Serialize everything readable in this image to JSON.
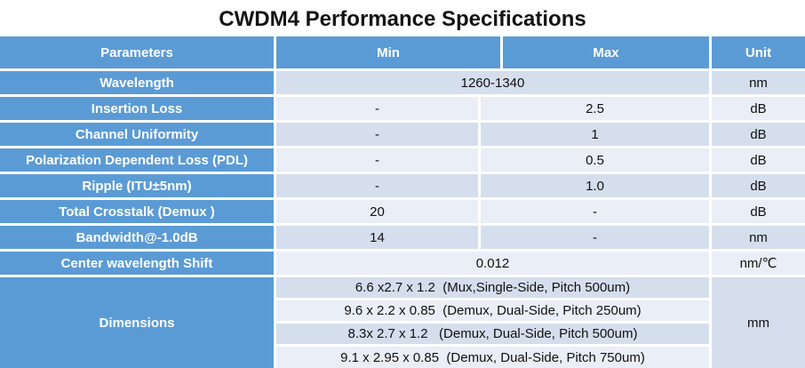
{
  "title": "CWDM4 Performance Specifications",
  "colors": {
    "header_blue": "#5B9BD5",
    "band_dark": "#D5DEED",
    "band_light": "#EAEEF7",
    "header_text": "#FFFFFF",
    "body_text": "#101010"
  },
  "table": {
    "headers": [
      "Parameters",
      "Min",
      "Max",
      "Unit"
    ],
    "rows": [
      {
        "param": "Wavelength",
        "min_max": "1260-1340",
        "unit": "nm"
      },
      {
        "param": "Insertion Loss",
        "min": "-",
        "max": "2.5",
        "unit": "dB"
      },
      {
        "param": "Channel Uniformity",
        "min": "-",
        "max": "1",
        "unit": "dB"
      },
      {
        "param": "Polarization Dependent Loss (PDL)",
        "min": "-",
        "max": "0.5",
        "unit": "dB"
      },
      {
        "param": "Ripple (ITU±5nm)",
        "min": "-",
        "max": "1.0",
        "unit": "dB"
      },
      {
        "param": "Total Crosstalk (Demux )",
        "min": "20",
        "max": "-",
        "unit": "dB"
      },
      {
        "param": "Bandwidth@-1.0dB",
        "min": "14",
        "max": "-",
        "unit": "nm"
      },
      {
        "param": "Center wavelength Shift",
        "min_max": "0.012",
        "unit": "nm/℃"
      }
    ],
    "dimensions": {
      "param": "Dimensions",
      "values": [
        "6.6 x2.7 x 1.2  (Mux,Single-Side, Pitch 500um)",
        "9.6 x 2.2 x 0.85  (Demux, Dual-Side, Pitch 250um)",
        "8.3x 2.7 x 1.2   (Demux, Dual-Side, Pitch 500um)",
        "9.1 x 2.95 x 0.85  (Demux, Dual-Side, Pitch 750um)"
      ],
      "unit": "mm"
    }
  }
}
